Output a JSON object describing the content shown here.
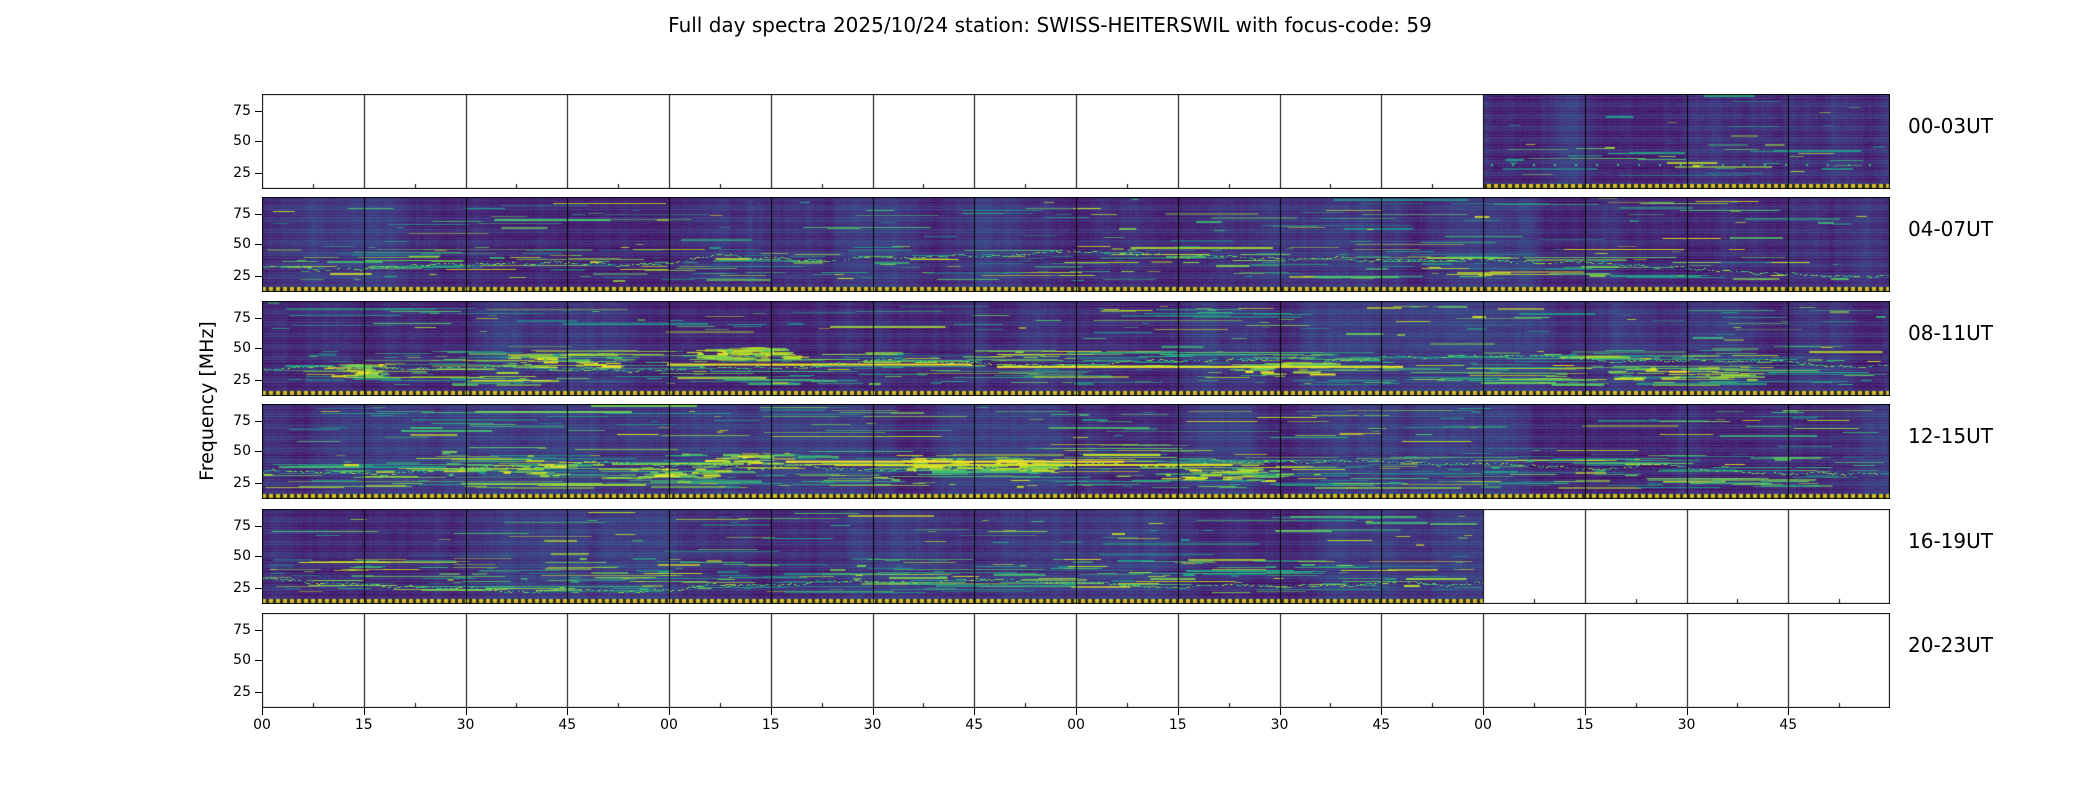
{
  "title": "Full day spectra 2025/10/24 station: SWISS-HEITERSWIL with focus-code: 59",
  "ylabel": "Frequency [MHz]",
  "yticks": [
    "75",
    "50",
    "25"
  ],
  "xticks": [
    "00",
    "15",
    "30",
    "45",
    "00",
    "15",
    "30",
    "45",
    "00",
    "15",
    "30",
    "45",
    "00",
    "15",
    "30",
    "45"
  ],
  "chart_data": {
    "type": "heatmap",
    "subtype": "solar-radio-spectrogram-grid",
    "title": "Full day spectra 2025/10/24 station: SWISS-HEITERSWIL with focus-code: 59",
    "station": "SWISS-HEITERSWIL",
    "date": "2025/10/24",
    "focus_code": "59",
    "ylabel": "Frequency [MHz]",
    "y_ticks_mhz": [
      25,
      50,
      75
    ],
    "y_range_mhz_approx": [
      12,
      89
    ],
    "colormap": "viridis",
    "x_tick_labels_minutes": [
      "00",
      "15",
      "30",
      "45",
      "00",
      "15",
      "30",
      "45",
      "00",
      "15",
      "30",
      "45",
      "00",
      "15",
      "30",
      "45"
    ],
    "segments_per_row": 16,
    "minutes_per_segment": 15,
    "hours_per_row": 4,
    "timestamp_strip": "dashed yellow marker strip along bottom edge of every recorded segment",
    "rows": [
      {
        "label": "00-03UT",
        "coverage_start": 0.75,
        "coverage_end": 1.0,
        "activity": "low",
        "description": "empty (no data) until ~03:00; dark quiet spectrogram with sparse evenly spaced teal dots in the last quarter"
      },
      {
        "label": "04-07UT",
        "coverage_start": 0.0,
        "coverage_end": 1.0,
        "activity": "moderate",
        "description": "full coverage; dark purple background with teal emission streaks below ~35 MHz, brighter interference bands near 70 MHz after 06 UT"
      },
      {
        "label": "08-11UT",
        "coverage_start": 0.0,
        "coverage_end": 1.0,
        "activity": "high",
        "description": "full coverage; strongest activity of the day, bright yellow-green bursts between ~20-40 MHz, brightest around 09:30-10:00 UT"
      },
      {
        "label": "12-15UT",
        "coverage_start": 0.0,
        "coverage_end": 1.0,
        "activity": "high",
        "description": "full coverage; dense teal/yellow streaks below ~40 MHz and scattered vertical interference bands"
      },
      {
        "label": "16-19UT",
        "coverage_start": 0.0,
        "coverage_end": 0.75,
        "activity": "moderate",
        "description": "data until ~19:00 with teal streaks below ~35 MHz; empty (no data) in the last quarter"
      },
      {
        "label": "20-23UT",
        "coverage_start": 0.0,
        "coverage_end": 0.0,
        "activity": "none",
        "description": "no data recorded; empty white panels with segment dividers only"
      }
    ]
  }
}
